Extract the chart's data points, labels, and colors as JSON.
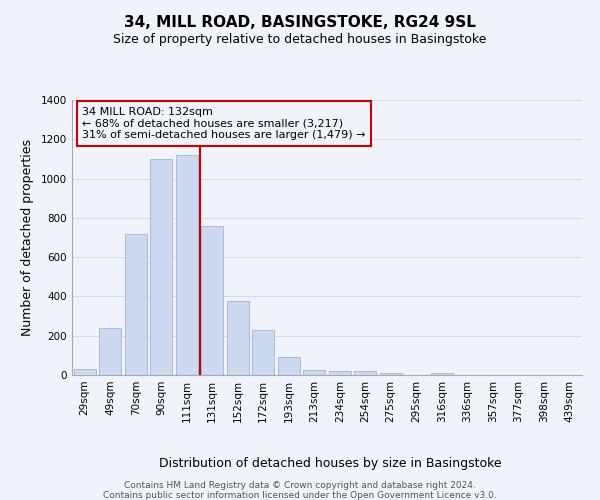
{
  "title": "34, MILL ROAD, BASINGSTOKE, RG24 9SL",
  "subtitle": "Size of property relative to detached houses in Basingstoke",
  "xlabel": "Distribution of detached houses by size in Basingstoke",
  "ylabel": "Number of detached properties",
  "categories": [
    "29sqm",
    "49sqm",
    "70sqm",
    "90sqm",
    "111sqm",
    "131sqm",
    "152sqm",
    "172sqm",
    "193sqm",
    "213sqm",
    "234sqm",
    "254sqm",
    "275sqm",
    "295sqm",
    "316sqm",
    "336sqm",
    "357sqm",
    "377sqm",
    "398sqm",
    "439sqm"
  ],
  "values": [
    30,
    240,
    720,
    1100,
    1120,
    760,
    375,
    230,
    90,
    25,
    20,
    20,
    10,
    0,
    10,
    0,
    0,
    0,
    0,
    0
  ],
  "bar_color": "#ccd9f0",
  "bar_edge_color": "#aabbd8",
  "highlight_line_color": "#cc0000",
  "annotation_box_text": "34 MILL ROAD: 132sqm\n← 68% of detached houses are smaller (3,217)\n31% of semi-detached houses are larger (1,479) →",
  "annotation_box_edge_color": "#cc0000",
  "ylim": [
    0,
    1400
  ],
  "yticks": [
    0,
    200,
    400,
    600,
    800,
    1000,
    1200,
    1400
  ],
  "footer_line1": "Contains HM Land Registry data © Crown copyright and database right 2024.",
  "footer_line2": "Contains public sector information licensed under the Open Government Licence v3.0.",
  "bg_color": "#f0f4fa",
  "grid_color": "#d0dcea",
  "title_fontsize": 11,
  "subtitle_fontsize": 9,
  "axis_label_fontsize": 9,
  "tick_fontsize": 7.5,
  "footer_fontsize": 6.5
}
